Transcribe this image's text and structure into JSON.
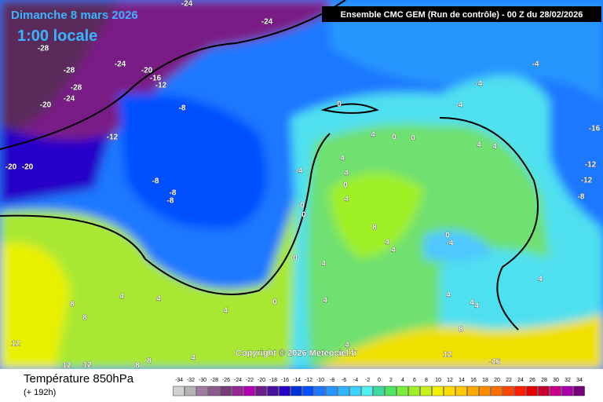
{
  "header": {
    "date": "Dimanche 8 mars 2026",
    "time": "1:00 locale",
    "model": "Ensemble CMC GEM  (Run de contrôle)  -  00 Z du 28/02/2026"
  },
  "copyright": "Copyright © 2026 Meteociel.fr",
  "footer": {
    "title": "Température 850hPa",
    "lead": "(+ 192h)"
  },
  "scale": {
    "values": [
      -34,
      -32,
      -30,
      -28,
      -26,
      -24,
      -22,
      -20,
      -18,
      -16,
      -14,
      -12,
      -10,
      -8,
      -6,
      -4,
      -2,
      0,
      2,
      4,
      6,
      8,
      10,
      12,
      14,
      16,
      18,
      20,
      22,
      24,
      26,
      28,
      30,
      32,
      34
    ],
    "colors": [
      "#d2d2d2",
      "#b4b4b4",
      "#a07ca0",
      "#8c5a8c",
      "#783c78",
      "#962896",
      "#b400b4",
      "#6e1e8c",
      "#4b0fa0",
      "#2800c8",
      "#0032dc",
      "#0050ff",
      "#1e78ff",
      "#2896ff",
      "#32b4ff",
      "#3cd2ff",
      "#50f0f0",
      "#3cdca0",
      "#50e664",
      "#78f03c",
      "#a0f028",
      "#c8f01e",
      "#f0f000",
      "#ffdc00",
      "#ffc800",
      "#ffaa00",
      "#ff8c00",
      "#ff6e00",
      "#ff4600",
      "#ff1e00",
      "#e60000",
      "#c80032",
      "#c8008c",
      "#aa00aa",
      "#780078"
    ]
  },
  "map_labels": [
    "-24",
    "-24",
    "-28",
    "-28",
    "-24",
    "-20",
    "-16",
    "-12",
    "-28",
    "-24",
    "-20",
    "-8",
    "-12",
    "-20",
    "-20",
    "-8",
    "-8",
    "-8",
    "-4",
    "0",
    "4",
    "0",
    "0",
    "-4",
    "-4",
    "-4",
    "-16",
    "-12",
    "-12",
    "-8",
    "0",
    "0",
    "0",
    "4",
    "4",
    "0",
    "4",
    "8",
    "4",
    "4",
    "0",
    "-4",
    "4",
    "4",
    "4",
    "4",
    "4",
    "0",
    "8",
    "8",
    "12",
    "12",
    "12",
    "8",
    "8",
    "4",
    "4",
    "4",
    "4",
    "4",
    "4",
    "8",
    "12",
    "-16",
    "4",
    "4"
  ]
}
